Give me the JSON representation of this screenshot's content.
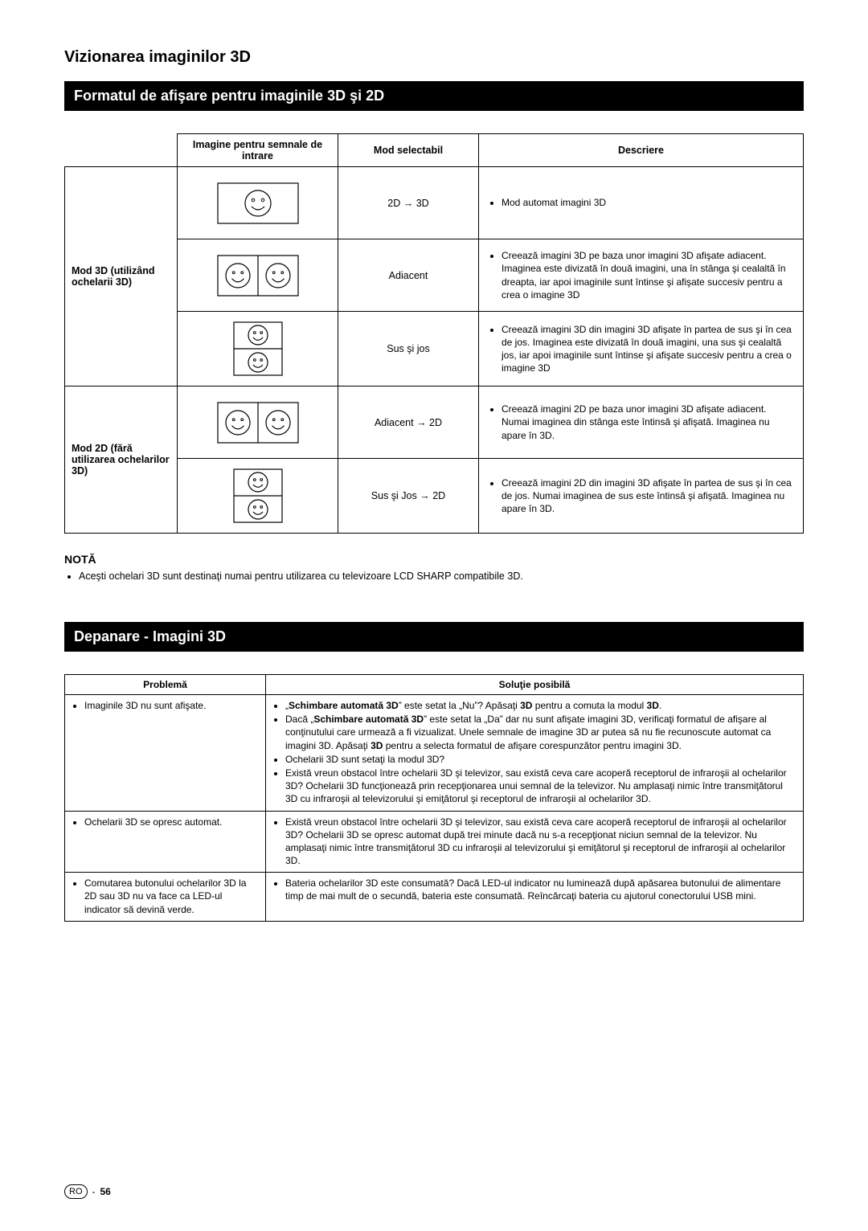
{
  "header": {
    "section_title": "Vizionarea imaginilor 3D",
    "bar1_title": "Formatul de afişare pentru imaginile 3D şi 2D",
    "bar2_title": "Depanare - Imagini 3D"
  },
  "format_table": {
    "columns": {
      "signal": "Imagine pentru semnale de intrare",
      "mode": "Mod selectabil",
      "desc": "Descriere"
    },
    "row_header_3d": "Mod 3D (utilizând ochelarii 3D)",
    "row_header_2d": "Mod 2D (fără utilizarea ochelarilor 3D)",
    "rows": [
      {
        "icon": "single",
        "mode": "2D → 3D",
        "desc": "Mod automat imagini 3D"
      },
      {
        "icon": "side",
        "mode": "Adiacent",
        "desc": "Creează imagini 3D pe baza unor imagini 3D afişate adiacent. Imaginea este divizată în două imagini, una în stânga şi cealaltă în dreapta, iar apoi imaginile sunt întinse şi afişate succesiv pentru a crea o imagine 3D"
      },
      {
        "icon": "stack",
        "mode": "Sus şi jos",
        "desc": "Creează imagini 3D din imagini 3D afişate în partea de sus şi în cea de jos. Imaginea este divizată în două imagini, una sus şi cealaltă jos, iar apoi imaginile sunt întinse şi afişate succesiv pentru a crea o imagine 3D"
      },
      {
        "icon": "side",
        "mode": "Adiacent → 2D",
        "desc": "Creează imagini 2D pe baza unor imagini 3D afişate adiacent. Numai imaginea din stânga este întinsă şi afişată. Imaginea nu apare în 3D."
      },
      {
        "icon": "stack",
        "mode": "Sus şi Jos → 2D",
        "desc": "Creează imagini 2D din imagini 3D afişate în partea de sus şi în cea de jos. Numai imaginea de sus este întinsă şi afişată. Imaginea nu apare în 3D."
      }
    ]
  },
  "note": {
    "heading": "NOTĂ",
    "text": "Aceşti ochelari 3D sunt destinaţi numai pentru utilizarea cu televizoare LCD SHARP compatibile 3D."
  },
  "trouble_table": {
    "columns": {
      "problem": "Problemă",
      "solution": "Soluţie posibilă"
    },
    "rows": [
      {
        "problem": "Imaginile 3D nu sunt afişate.",
        "solutions": [
          "„<b>Schimbare automată 3D</b>” este setat la „Nu”? Apăsaţi <b>3D</b> pentru a comuta la modul <b>3D</b>.",
          "Dacă „<b>Schimbare automată 3D</b>” este setat la „Da” dar nu sunt afişate imagini 3D, verificaţi formatul de afişare al conţinutului care urmează a fi vizualizat. Unele semnale de imagine 3D ar putea să nu fie recunoscute automat ca imagini 3D. Apăsaţi <b>3D</b> pentru a selecta formatul de afişare corespunzător pentru imagini 3D.",
          "Ochelarii 3D sunt setaţi la modul 3D?",
          "Există vreun obstacol între ochelarii 3D şi televizor, sau există ceva care acoperă receptorul de infraroşii al ochelarilor 3D? Ochelarii 3D funcţionează prin recepţionarea unui semnal de la televizor. Nu amplasaţi nimic între transmiţătorul 3D cu infraroşii al televizorului şi emiţătorul şi receptorul de infraroşii al ochelarilor 3D."
        ]
      },
      {
        "problem": "Ochelarii 3D se opresc automat.",
        "solutions": [
          "Există vreun obstacol între ochelarii 3D şi televizor, sau există ceva care acoperă receptorul de infraroşii al ochelarilor 3D? Ochelarii 3D se opresc automat după trei minute dacă nu s-a recepţionat niciun semnal de la televizor. Nu amplasaţi nimic între transmiţătorul 3D cu infraroşii al televizorului şi emiţătorul şi receptorul de infraroşii al ochelarilor 3D."
        ]
      },
      {
        "problem": "Comutarea butonului ochelarilor 3D la 2D sau 3D nu va face ca LED-ul indicator să devină verde.",
        "solutions": [
          "Bateria ochelarilor 3D este consumată? Dacă LED-ul indicator nu luminează după apăsarea butonului de alimentare timp de mai mult de o secundă, bateria este consumată. Reîncărcaţi bateria cu ajutorul conectorului USB mini."
        ]
      }
    ]
  },
  "footer": {
    "lang": "RO",
    "sep": "-",
    "page": "56"
  }
}
